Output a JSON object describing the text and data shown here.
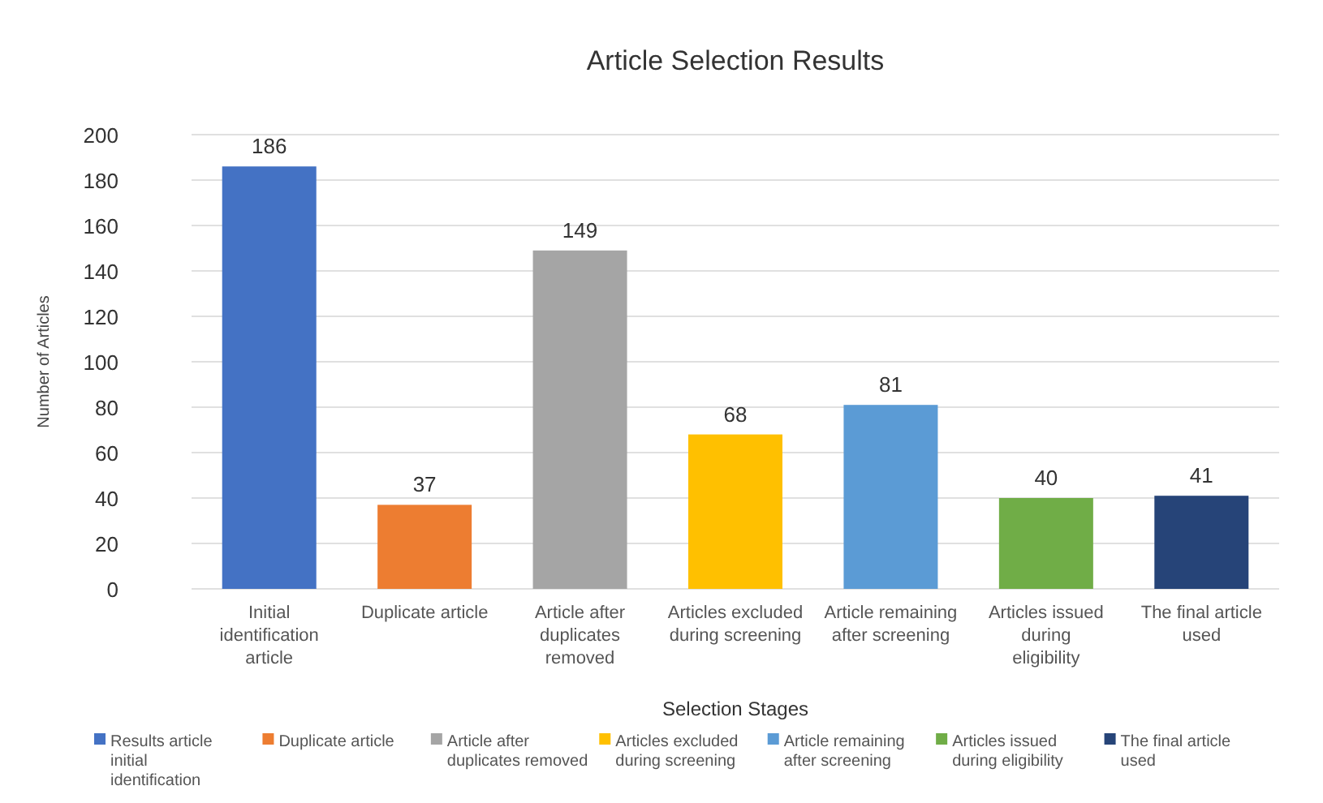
{
  "chart_data": {
    "type": "bar",
    "title": "Article Selection Results",
    "xlabel": "Selection Stages",
    "ylabel": "Number of Articles",
    "categories": [
      "Initial identification article",
      "Duplicate article",
      "Article after duplicates removed",
      "Articles excluded during screening",
      "Article remaining after screening",
      "Articles issued during eligibility",
      "The final article used"
    ],
    "series": [
      {
        "name": "Results article initial identification",
        "color": "#4472c4",
        "values": [
          186,
          null,
          null,
          null,
          null,
          null,
          null
        ]
      },
      {
        "name": "Duplicate article",
        "color": "#ed7d31",
        "values": [
          null,
          37,
          null,
          null,
          null,
          null,
          null
        ]
      },
      {
        "name": "Article after duplicates removed",
        "color": "#a5a5a5",
        "values": [
          null,
          null,
          149,
          null,
          null,
          null,
          null
        ]
      },
      {
        "name": "Articles excluded during screening",
        "color": "#ffc000",
        "values": [
          null,
          null,
          null,
          68,
          null,
          null,
          null
        ]
      },
      {
        "name": "Article remaining after screening",
        "color": "#5b9bd5",
        "values": [
          null,
          null,
          null,
          null,
          81,
          null,
          null
        ]
      },
      {
        "name": "Articles issued during eligibility",
        "color": "#70ad47",
        "values": [
          null,
          null,
          null,
          null,
          null,
          40,
          null
        ]
      },
      {
        "name": "The final article used",
        "color": "#264478",
        "values": [
          null,
          null,
          null,
          null,
          null,
          null,
          41
        ]
      }
    ],
    "ylim": [
      0,
      200
    ],
    "yticks": [
      0,
      20,
      40,
      60,
      80,
      100,
      120,
      140,
      160,
      180,
      200
    ],
    "grid": "y",
    "legend": "bottom",
    "data_labels": true
  }
}
